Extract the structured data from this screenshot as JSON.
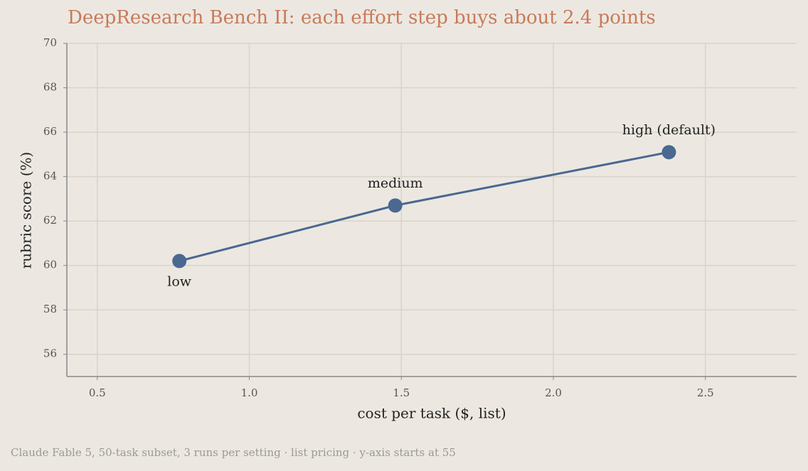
{
  "chart_data": {
    "type": "line",
    "title": "DeepResearch Bench II: each effort step buys about 2.4 points",
    "x_label": "cost per task ($, list)",
    "y_label": "rubric score (%)",
    "footnote": "Claude Fable 5, 50-task subset, 3 runs per setting · list pricing · y-axis starts at 55",
    "x": [
      0.77,
      1.48,
      2.38
    ],
    "series": [
      {
        "color": "#4a6890",
        "values": [
          60.2,
          62.7,
          65.1
        ]
      }
    ],
    "point_labels": [
      "low",
      "medium",
      "high (default)"
    ],
    "xlim": [
      0.4,
      2.8
    ],
    "ylim": [
      55,
      70
    ],
    "xticks": [
      0.5,
      {
        "value": 1.0,
        "label": "1.0"
      },
      1.5,
      {
        "value": 2.0,
        "label": "2.0"
      },
      2.5
    ],
    "yticks": [
      56,
      58,
      60,
      62,
      64,
      66,
      68,
      70
    ],
    "grid": true
  }
}
